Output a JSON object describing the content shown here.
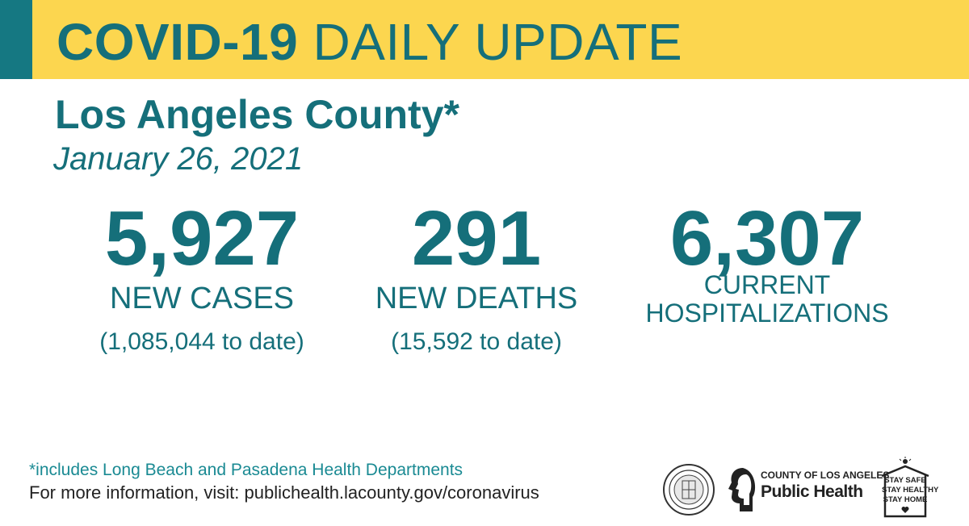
{
  "banner": {
    "title_strong": "COVID-19",
    "title_rest": " DAILY UPDATE",
    "background_color": "#fcd64f",
    "accent_color": "#157882"
  },
  "subtitle": {
    "county": "Los Angeles County*",
    "date": "January 26, 2021"
  },
  "stats": {
    "cases": {
      "number": "5,927",
      "label": "NEW CASES",
      "to_date": "(1,085,044 to date)"
    },
    "deaths": {
      "number": "291",
      "label": "NEW DEATHS",
      "to_date": "(15,592 to date)"
    },
    "hospitalizations": {
      "number": "6,307",
      "label_line1": "CURRENT",
      "label_line2": "HOSPITALIZATIONS"
    }
  },
  "footer": {
    "footnote": "*includes Long Beach and Pasadena Health Departments",
    "more_info": "For more information, visit: publichealth.lacounty.gov/coronavirus"
  },
  "logos": {
    "public_health_small": "COUNTY OF LOS ANGELES",
    "public_health_big": "Public Health",
    "stay_line1": "STAY SAFE",
    "stay_line2": "STAY HEALTHY",
    "stay_line3": "STAY HOME"
  },
  "text_color": "#156f7a"
}
